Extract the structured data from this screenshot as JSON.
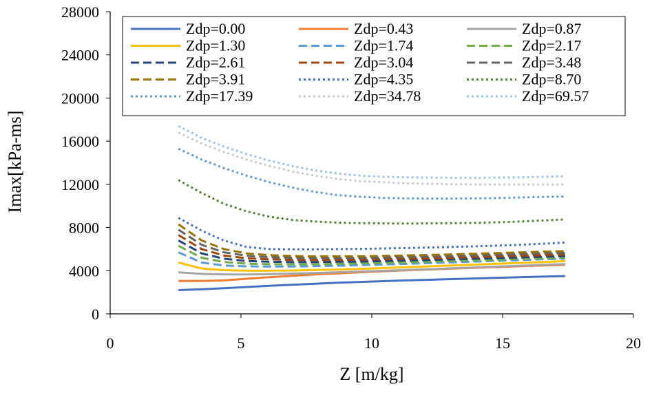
{
  "chart_data": {
    "type": "line",
    "title": "",
    "xlabel": "Z [m/kg]",
    "ylabel": "Imax[kPa-ms]",
    "xlim": [
      0,
      20
    ],
    "ylim": [
      0,
      28000
    ],
    "xticks": [
      0,
      5,
      10,
      15,
      20
    ],
    "xtick_labels": [
      "0",
      "5",
      "10",
      "15",
      "20"
    ],
    "yticks": [
      0,
      4000,
      8000,
      12000,
      16000,
      20000,
      24000,
      28000
    ],
    "ytick_labels": [
      "0",
      "4000",
      "8000",
      "12000",
      "16000",
      "20000",
      "24000",
      "28000"
    ],
    "grid": false,
    "legend_position": "top",
    "x": [
      2.61,
      3.5,
      4.35,
      5.22,
      6.09,
      6.96,
      7.83,
      8.7,
      9.57,
      10.44,
      11.31,
      12.18,
      13.05,
      13.92,
      14.79,
      15.66,
      16.53,
      17.39
    ],
    "series": [
      {
        "name": "Zdp=0.00",
        "color": "#4472C4",
        "dash": "solid",
        "values": [
          2200,
          2280,
          2380,
          2490,
          2600,
          2700,
          2790,
          2880,
          2960,
          3030,
          3100,
          3160,
          3220,
          3280,
          3340,
          3400,
          3450,
          3500
        ]
      },
      {
        "name": "Zdp=0.43",
        "color": "#ED7D31",
        "dash": "solid",
        "values": [
          3050,
          3050,
          3100,
          3250,
          3400,
          3530,
          3650,
          3750,
          3850,
          3950,
          4030,
          4110,
          4190,
          4270,
          4340,
          4410,
          4480,
          4550
        ]
      },
      {
        "name": "Zdp=0.87",
        "color": "#A5A5A5",
        "dash": "solid",
        "values": [
          3850,
          3700,
          3650,
          3650,
          3680,
          3730,
          3790,
          3850,
          3920,
          3990,
          4060,
          4140,
          4220,
          4300,
          4380,
          4460,
          4540,
          4620
        ]
      },
      {
        "name": "Zdp=1.30",
        "color": "#FFC000",
        "dash": "solid",
        "values": [
          4750,
          4200,
          4050,
          4000,
          4000,
          4020,
          4060,
          4110,
          4170,
          4240,
          4320,
          4400,
          4480,
          4560,
          4640,
          4720,
          4800,
          4880
        ]
      },
      {
        "name": "Zdp=1.74",
        "color": "#5B9BD5",
        "dash": "dashed",
        "values": [
          5700,
          4750,
          4480,
          4400,
          4380,
          4390,
          4420,
          4460,
          4510,
          4570,
          4630,
          4700,
          4770,
          4840,
          4910,
          4980,
          5050,
          5110
        ]
      },
      {
        "name": "Zdp=2.17",
        "color": "#70AD47",
        "dash": "dashed",
        "values": [
          6300,
          5200,
          4800,
          4650,
          4600,
          4590,
          4600,
          4630,
          4670,
          4720,
          4780,
          4840,
          4900,
          4960,
          5020,
          5090,
          5150,
          5210
        ]
      },
      {
        "name": "Zdp=2.61",
        "color": "#264478",
        "dash": "dashed",
        "values": [
          6800,
          5600,
          5100,
          4900,
          4830,
          4800,
          4800,
          4820,
          4850,
          4890,
          4940,
          4990,
          5050,
          5110,
          5170,
          5230,
          5290,
          5350
        ]
      },
      {
        "name": "Zdp=3.04",
        "color": "#9E480E",
        "dash": "dashed",
        "values": [
          7300,
          6000,
          5400,
          5150,
          5050,
          5000,
          4990,
          5000,
          5020,
          5060,
          5100,
          5150,
          5200,
          5260,
          5320,
          5380,
          5440,
          5500
        ]
      },
      {
        "name": "Zdp=3.48",
        "color": "#636363",
        "dash": "dashed",
        "values": [
          7800,
          6400,
          5700,
          5380,
          5250,
          5190,
          5170,
          5170,
          5190,
          5220,
          5260,
          5310,
          5360,
          5420,
          5480,
          5540,
          5600,
          5660
        ]
      },
      {
        "name": "Zdp=3.91",
        "color": "#997300",
        "dash": "dashed",
        "values": [
          8300,
          6800,
          6000,
          5600,
          5440,
          5360,
          5330,
          5330,
          5340,
          5370,
          5410,
          5460,
          5510,
          5570,
          5630,
          5690,
          5760,
          5820
        ]
      },
      {
        "name": "Zdp=4.35",
        "color": "#4472C4",
        "dash": "dotted",
        "values": [
          8900,
          7700,
          6800,
          6200,
          6000,
          5980,
          5980,
          6000,
          6020,
          6060,
          6100,
          6150,
          6200,
          6260,
          6320,
          6400,
          6500,
          6600
        ]
      },
      {
        "name": "Zdp=8.70",
        "color": "#548235",
        "dash": "dotted",
        "values": [
          12400,
          11200,
          10200,
          9500,
          9000,
          8700,
          8550,
          8450,
          8400,
          8380,
          8370,
          8380,
          8400,
          8430,
          8480,
          8550,
          8650,
          8750
        ]
      },
      {
        "name": "Zdp=17.39",
        "color": "#5B9BD5",
        "dash": "dotted",
        "values": [
          15300,
          14300,
          13500,
          12800,
          12200,
          11700,
          11300,
          11000,
          10850,
          10750,
          10700,
          10680,
          10680,
          10700,
          10730,
          10780,
          10830,
          10880
        ]
      },
      {
        "name": "Zdp=34.78",
        "color": "#C9C9C9",
        "dash": "dotted",
        "values": [
          16800,
          15800,
          15000,
          14300,
          13700,
          13200,
          12800,
          12500,
          12300,
          12200,
          12100,
          12050,
          12020,
          12000,
          12000,
          12000,
          12000,
          12000
        ]
      },
      {
        "name": "Zdp=69.57",
        "color": "#9DC3E6",
        "dash": "dotted",
        "values": [
          17400,
          16300,
          15500,
          14800,
          14200,
          13700,
          13300,
          13000,
          12800,
          12700,
          12650,
          12620,
          12600,
          12600,
          12620,
          12650,
          12700,
          12750
        ]
      }
    ]
  }
}
